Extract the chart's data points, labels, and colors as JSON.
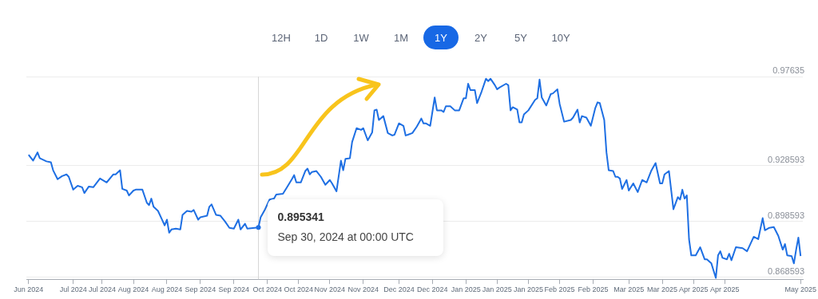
{
  "chart_data": {
    "type": "line",
    "x": [
      "2024-06-19",
      "2024-06-21",
      "2024-06-23",
      "2024-06-24",
      "2024-06-27",
      "2024-06-29",
      "2024-06-30",
      "2024-07-02",
      "2024-07-04",
      "2024-07-06",
      "2024-07-07",
      "2024-07-09",
      "2024-07-11",
      "2024-07-13",
      "2024-07-14",
      "2024-07-16",
      "2024-07-18",
      "2024-07-21",
      "2024-07-24",
      "2024-07-27",
      "2024-07-28",
      "2024-07-30",
      "2024-07-31",
      "2024-08-02",
      "2024-08-03",
      "2024-08-05",
      "2024-08-06",
      "2024-08-09",
      "2024-08-11",
      "2024-08-12",
      "2024-08-13",
      "2024-08-14",
      "2024-08-16",
      "2024-08-18",
      "2024-08-19",
      "2024-08-20",
      "2024-08-21",
      "2024-08-22",
      "2024-08-24",
      "2024-08-26",
      "2024-08-27",
      "2024-08-29",
      "2024-08-31",
      "2024-09-01",
      "2024-09-03",
      "2024-09-04",
      "2024-09-07",
      "2024-09-08",
      "2024-09-09",
      "2024-09-11",
      "2024-09-13",
      "2024-09-15",
      "2024-09-17",
      "2024-09-19",
      "2024-09-21",
      "2024-09-22",
      "2024-09-24",
      "2024-09-25",
      "2024-09-30",
      "2024-10-01",
      "2024-10-03",
      "2024-10-05",
      "2024-10-07",
      "2024-10-08",
      "2024-10-11",
      "2024-10-13",
      "2024-10-15",
      "2024-10-16",
      "2024-10-17",
      "2024-10-19",
      "2024-10-21",
      "2024-10-22",
      "2024-10-23",
      "2024-10-24",
      "2024-10-26",
      "2024-10-28",
      "2024-10-30",
      "2024-11-01",
      "2024-11-02",
      "2024-11-04",
      "2024-11-06",
      "2024-11-07",
      "2024-11-08",
      "2024-11-10",
      "2024-11-11",
      "2024-11-13",
      "2024-11-15",
      "2024-11-16",
      "2024-11-18",
      "2024-11-20",
      "2024-11-21",
      "2024-11-22",
      "2024-11-23",
      "2024-11-25",
      "2024-11-27",
      "2024-11-29",
      "2024-11-30",
      "2024-12-02",
      "2024-12-04",
      "2024-12-05",
      "2024-12-06",
      "2024-12-08",
      "2024-12-10",
      "2024-12-12",
      "2024-12-13",
      "2024-12-14",
      "2024-12-16",
      "2024-12-18",
      "2024-12-19",
      "2024-12-21",
      "2024-12-22",
      "2024-12-23",
      "2024-12-25",
      "2024-12-27",
      "2024-12-29",
      "2024-12-31",
      "2025-01-01",
      "2025-01-02",
      "2025-01-03",
      "2025-01-05",
      "2025-01-06",
      "2025-01-08",
      "2025-01-10",
      "2025-01-11",
      "2025-01-12",
      "2025-01-14",
      "2025-01-15",
      "2025-01-16",
      "2025-01-19",
      "2025-01-20",
      "2025-01-21",
      "2025-01-22",
      "2025-01-24",
      "2025-01-25",
      "2025-01-26",
      "2025-01-27",
      "2025-01-29",
      "2025-02-01",
      "2025-02-02",
      "2025-02-03",
      "2025-02-04",
      "2025-02-06",
      "2025-02-08",
      "2025-02-09",
      "2025-02-11",
      "2025-02-12",
      "2025-02-14",
      "2025-02-17",
      "2025-02-18",
      "2025-02-20",
      "2025-02-21",
      "2025-02-22",
      "2025-02-24",
      "2025-02-26",
      "2025-02-28",
      "2025-03-01",
      "2025-03-02",
      "2025-03-04",
      "2025-03-05",
      "2025-03-06",
      "2025-03-08",
      "2025-03-09",
      "2025-03-10",
      "2025-03-11",
      "2025-03-12",
      "2025-03-14",
      "2025-03-15",
      "2025-03-17",
      "2025-03-19",
      "2025-03-21",
      "2025-03-23",
      "2025-03-25",
      "2025-03-27",
      "2025-03-29",
      "2025-03-30",
      "2025-03-31",
      "2025-04-02",
      "2025-04-04",
      "2025-04-06",
      "2025-04-07",
      "2025-04-08",
      "2025-04-09",
      "2025-04-10",
      "2025-04-11",
      "2025-04-12",
      "2025-04-14",
      "2025-04-16",
      "2025-04-18",
      "2025-04-19",
      "2025-04-21",
      "2025-04-23",
      "2025-04-24",
      "2025-04-25",
      "2025-04-26",
      "2025-04-28",
      "2025-04-29",
      "2025-04-30",
      "2025-05-02",
      "2025-05-05",
      "2025-05-07",
      "2025-05-10",
      "2025-05-12",
      "2025-05-14",
      "2025-05-15",
      "2025-05-17",
      "2025-05-19",
      "2025-05-21",
      "2025-05-23",
      "2025-05-24",
      "2025-05-25",
      "2025-05-27",
      "2025-05-28",
      "2025-05-29",
      "2025-05-30",
      "2025-05-31"
    ],
    "series": [
      {
        "color": "#1e6fe3",
        "values": [
          0.9343,
          0.9312,
          0.9356,
          0.9325,
          0.9308,
          0.9303,
          0.926,
          0.9212,
          0.9229,
          0.9238,
          0.9225,
          0.9156,
          0.9177,
          0.9169,
          0.9138,
          0.9173,
          0.9169,
          0.9216,
          0.9195,
          0.9238,
          0.9238,
          0.926,
          0.916,
          0.9151,
          0.9125,
          0.9151,
          0.9156,
          0.9156,
          0.9086,
          0.9073,
          0.9108,
          0.9064,
          0.9042,
          0.899,
          0.8964,
          0.8995,
          0.8925,
          0.8942,
          0.8947,
          0.8942,
          0.9021,
          0.9042,
          0.9038,
          0.9047,
          0.8995,
          0.9008,
          0.9016,
          0.9064,
          0.9077,
          0.9021,
          0.9016,
          0.8986,
          0.8951,
          0.8947,
          0.8995,
          0.8942,
          0.8973,
          0.8947,
          0.895341,
          0.9008,
          0.9051,
          0.9103,
          0.9108,
          0.913,
          0.9134,
          0.9173,
          0.9212,
          0.9234,
          0.9195,
          0.9195,
          0.9256,
          0.9269,
          0.9238,
          0.9251,
          0.9256,
          0.9225,
          0.9182,
          0.9208,
          0.919,
          0.9147,
          0.9312,
          0.926,
          0.9321,
          0.9325,
          0.9412,
          0.9486,
          0.9477,
          0.9486,
          0.9421,
          0.9464,
          0.9582,
          0.9586,
          0.953,
          0.9551,
          0.946,
          0.9447,
          0.9451,
          0.9512,
          0.9499,
          0.9447,
          0.9451,
          0.946,
          0.9495,
          0.9538,
          0.9512,
          0.9512,
          0.9499,
          0.9651,
          0.9582,
          0.9582,
          0.9573,
          0.9604,
          0.9604,
          0.9582,
          0.9582,
          0.9647,
          0.9647,
          0.9725,
          0.9691,
          0.9691,
          0.9621,
          0.9682,
          0.9752,
          0.9739,
          0.9752,
          0.9717,
          0.9695,
          0.9704,
          0.9725,
          0.9717,
          0.9582,
          0.9599,
          0.9586,
          0.9517,
          0.9517,
          0.956,
          0.9582,
          0.9638,
          0.9647,
          0.9747,
          0.9651,
          0.9608,
          0.9669,
          0.9673,
          0.9695,
          0.9617,
          0.9521,
          0.953,
          0.9543,
          0.9586,
          0.9517,
          0.9551,
          0.9543,
          0.9499,
          0.9595,
          0.9625,
          0.9621,
          0.953,
          0.9356,
          0.926,
          0.9256,
          0.9225,
          0.9225,
          0.9216,
          0.916,
          0.9208,
          0.9151,
          0.919,
          0.9143,
          0.9208,
          0.9195,
          0.9256,
          0.9299,
          0.919,
          0.919,
          0.9238,
          0.9256,
          0.9051,
          0.9116,
          0.9103,
          0.9156,
          0.9108,
          0.9125,
          0.889,
          0.8803,
          0.8803,
          0.8847,
          0.8782,
          0.8782,
          0.876,
          0.8682,
          0.8803,
          0.8825,
          0.879,
          0.8782,
          0.8812,
          0.8777,
          0.8847,
          0.8842,
          0.8825,
          0.8903,
          0.889,
          0.9003,
          0.8938,
          0.8951,
          0.8955,
          0.8908,
          0.8834,
          0.8864,
          0.8803,
          0.8799,
          0.876,
          0.8834,
          0.8899,
          0.8799
        ]
      }
    ],
    "xlim": [
      "2024-06-18",
      "2025-06-01"
    ],
    "xticks": [
      {
        "value": "2024-06-19",
        "label": "Jun 2024"
      },
      {
        "value": "2024-07-09",
        "label": "Jul 2024"
      },
      {
        "value": "2024-07-22",
        "label": "Jul 2024"
      },
      {
        "value": "2024-08-05",
        "label": "Aug 2024"
      },
      {
        "value": "2024-08-20",
        "label": "Aug 2024"
      },
      {
        "value": "2024-09-04",
        "label": "Sep 2024"
      },
      {
        "value": "2024-09-19",
        "label": "Sep 2024"
      },
      {
        "value": "2024-10-04",
        "label": "Oct 2024"
      },
      {
        "value": "2024-10-18",
        "label": "Oct 2024"
      },
      {
        "value": "2024-11-01",
        "label": "Nov 2024"
      },
      {
        "value": "2024-11-16",
        "label": "Nov 2024"
      },
      {
        "value": "2024-12-02",
        "label": "Dec 2024"
      },
      {
        "value": "2024-12-17",
        "label": "Dec 2024"
      },
      {
        "value": "2025-01-01",
        "label": "Jan 2025"
      },
      {
        "value": "2025-01-15",
        "label": "Jan 2025"
      },
      {
        "value": "2025-01-29",
        "label": "Jan 2025"
      },
      {
        "value": "2025-02-12",
        "label": "Feb 2025"
      },
      {
        "value": "2025-02-27",
        "label": "Feb 2025"
      },
      {
        "value": "2025-03-15",
        "label": "Mar 2025"
      },
      {
        "value": "2025-03-30",
        "label": "Mar 2025"
      },
      {
        "value": "2025-04-13",
        "label": "Apr 2025"
      },
      {
        "value": "2025-04-27",
        "label": "Apr 2025"
      },
      {
        "value": "2025-05-31",
        "label": "May 2025"
      }
    ],
    "ylim": [
      0.8675,
      0.97635
    ],
    "yticks": [
      0.868593,
      0.898593,
      0.928593,
      0.97635
    ],
    "grid": "y",
    "ref_lines": [
      {
        "axis": "x",
        "value": "2024-09-30",
        "color": "#d6d6d6"
      }
    ],
    "annotations": [
      "12H",
      "1D",
      "1W",
      "1M",
      "1Y",
      "2Y",
      "5Y",
      "10Y",
      {
        "text": "0.895341",
        "x": "2024-09-30",
        "y": 0.895341
      },
      {
        "text": "Sep 30, 2024 at 00:00 UTC",
        "x": "2024-09-30",
        "y": 0.895341
      }
    ]
  }
}
